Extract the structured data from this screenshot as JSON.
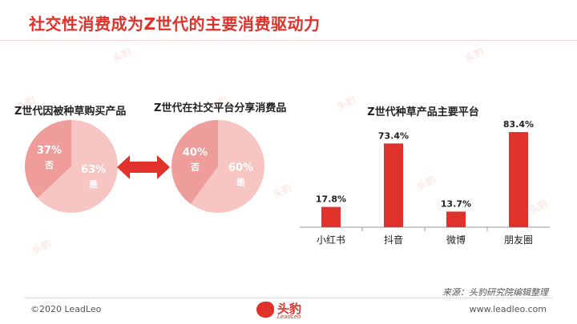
{
  "header": {
    "title": "社交性消费成为Z世代的主要消费驱动力"
  },
  "watermark": {
    "text": "头豹"
  },
  "colors": {
    "accent": "#e0312b",
    "pie_minor": "#ee9d9a",
    "pie_major": "#f7c6c3",
    "arrow": "#e0312b"
  },
  "chart_data": [
    {
      "type": "pie",
      "title": "Z世代因被种草购买产品",
      "slices": [
        {
          "label": "否",
          "value": 37,
          "value_label": "37%"
        },
        {
          "label": "是",
          "value": 63,
          "value_label": "63%"
        }
      ]
    },
    {
      "type": "pie",
      "title": "Z世代在社交平台分享消费品",
      "slices": [
        {
          "label": "否",
          "value": 40,
          "value_label": "40%"
        },
        {
          "label": "是",
          "value": 60,
          "value_label": "60%"
        }
      ]
    },
    {
      "type": "bar",
      "title": "Z世代种草产品主要平台",
      "categories": [
        "小红书",
        "抖音",
        "微博",
        "朋友圈"
      ],
      "values": [
        17.8,
        73.4,
        13.7,
        83.4
      ],
      "value_labels": [
        "17.8%",
        "73.4%",
        "13.7%",
        "83.4%"
      ],
      "ylim": [
        0,
        100
      ],
      "grid": false,
      "color": "#e0312b"
    }
  ],
  "source": "来源：头豹研究院编辑整理",
  "footer": {
    "copyright": "©2020 LeadLeo",
    "website": "www.leadleo.com",
    "logo_text": "头豹",
    "logo_sub": "LeadLeo"
  }
}
